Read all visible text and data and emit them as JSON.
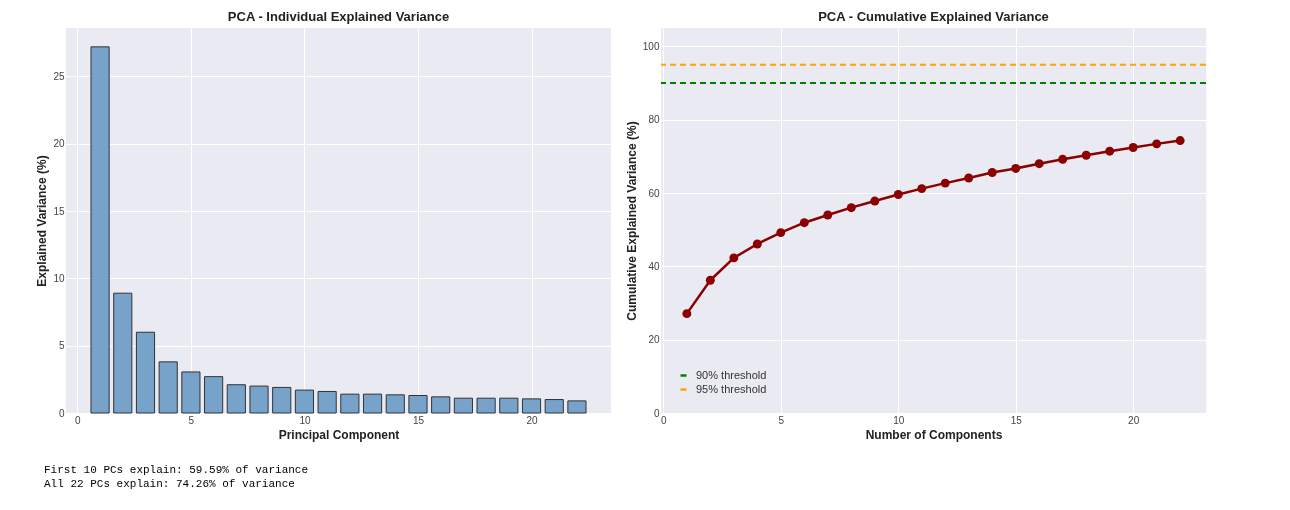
{
  "chart_data": [
    {
      "type": "bar",
      "title": "PCA - Individual Explained Variance",
      "xlabel": "Principal Component",
      "ylabel": "Explained Variance (%)",
      "x": [
        1,
        2,
        3,
        4,
        5,
        6,
        7,
        8,
        9,
        10,
        11,
        12,
        13,
        14,
        15,
        16,
        17,
        18,
        19,
        20,
        21,
        22
      ],
      "values": [
        27.2,
        8.9,
        6.0,
        3.8,
        3.05,
        2.7,
        2.1,
        2.0,
        1.9,
        1.7,
        1.6,
        1.4,
        1.4,
        1.35,
        1.3,
        1.2,
        1.1,
        1.1,
        1.1,
        1.05,
        1.0,
        0.9
      ],
      "color": "#77a2c9",
      "xlim": [
        -0.5,
        23.5
      ],
      "xticks": [
        0,
        5,
        10,
        15,
        20
      ],
      "ylim": [
        0,
        28.6
      ],
      "yticks": [
        0,
        5,
        10,
        15,
        20,
        25
      ],
      "grid": true,
      "annotations": [
        "First 10 PCs explain: 59.59% of variance",
        "All 22 PCs explain: 74.26% of variance"
      ]
    },
    {
      "type": "line",
      "title": "PCA - Cumulative Explained Variance",
      "xlabel": "Number of Components",
      "ylabel": "Cumulative Explained Variance (%)",
      "x": [
        1,
        2,
        3,
        4,
        5,
        6,
        7,
        8,
        9,
        10,
        11,
        12,
        13,
        14,
        15,
        16,
        17,
        18,
        19,
        20,
        21,
        22
      ],
      "series": [
        {
          "color": "#8b0000",
          "values": [
            27.1,
            36.2,
            42.3,
            46.1,
            49.2,
            51.9,
            54.0,
            56.0,
            57.8,
            59.6,
            61.2,
            62.7,
            64.1,
            65.6,
            66.7,
            68.0,
            69.2,
            70.3,
            71.4,
            72.4,
            73.4,
            74.3
          ]
        }
      ],
      "marker": "circle",
      "line_style": "solid",
      "ref_lines": [
        {
          "axis": "y",
          "value": 90,
          "label": "90% threshold",
          "color": "#008000",
          "line_style": "dashed"
        },
        {
          "axis": "y",
          "value": 95,
          "label": "95% threshold",
          "color": "#ffa500",
          "line_style": "dashed"
        }
      ],
      "xlim": [
        -0.1,
        23.1
      ],
      "xticks": [
        0,
        5,
        10,
        15,
        20
      ],
      "ylim": [
        0,
        105
      ],
      "yticks": [
        0,
        20,
        40,
        60,
        80,
        100
      ],
      "grid": true,
      "legend": "bottom left"
    }
  ]
}
